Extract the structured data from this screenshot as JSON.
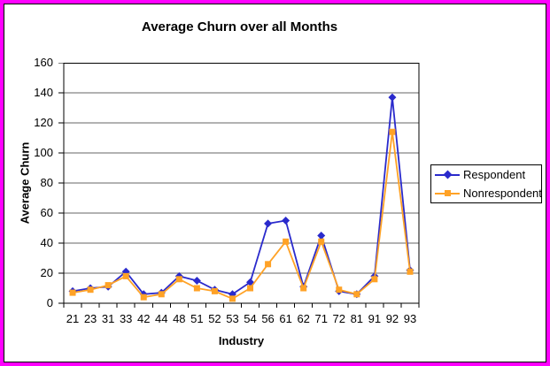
{
  "frame": {
    "border_color": "#FF00FF",
    "background": "#FFFFFF"
  },
  "chart_data": {
    "type": "line",
    "title": "Average Churn over all Months",
    "xlabel": "Industry",
    "ylabel": "Average Churn",
    "categories": [
      "21",
      "23",
      "31",
      "33",
      "42",
      "44",
      "48",
      "51",
      "52",
      "53",
      "54",
      "56",
      "61",
      "62",
      "71",
      "72",
      "81",
      "91",
      "92",
      "93"
    ],
    "series": [
      {
        "name": "Respondent",
        "color": "#2A2ACC",
        "marker": "diamond",
        "values": [
          8,
          10,
          11,
          21,
          6,
          7,
          18,
          15,
          9,
          6,
          14,
          53,
          55,
          11,
          45,
          8,
          6,
          18,
          137,
          22
        ]
      },
      {
        "name": "Nonrespondent",
        "color": "#FFA226",
        "marker": "square",
        "values": [
          7,
          9,
          12,
          18,
          4,
          6,
          16,
          10,
          8,
          3,
          10,
          26,
          41,
          10,
          41,
          9,
          6,
          16,
          114,
          21
        ]
      }
    ],
    "ylim": [
      0,
      160
    ],
    "y_ticks": [
      0,
      20,
      40,
      60,
      80,
      100,
      120,
      140,
      160
    ],
    "grid": true,
    "legend_position": "right"
  }
}
